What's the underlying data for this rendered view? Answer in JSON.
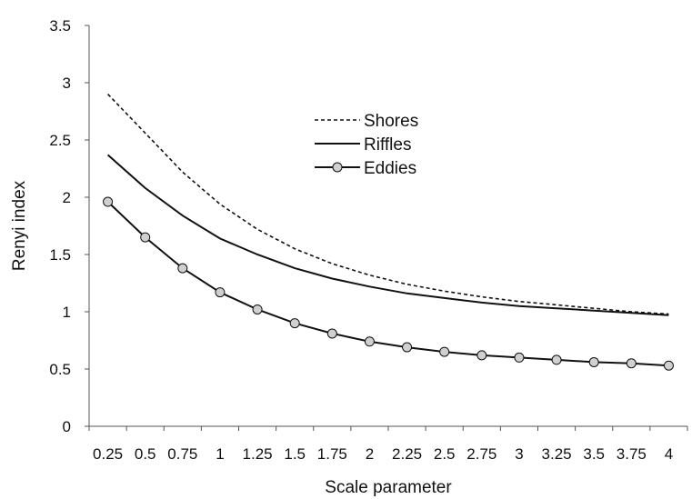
{
  "chart_data": {
    "type": "line",
    "title": "",
    "xlabel": "Scale parameter",
    "ylabel": "Renyi index",
    "x": [
      0.25,
      0.5,
      0.75,
      1,
      1.25,
      1.5,
      1.75,
      2,
      2.25,
      2.5,
      2.75,
      3,
      3.25,
      3.5,
      3.75,
      4
    ],
    "x_tick_labels": [
      "0.25",
      "0.5",
      "0.75",
      "1",
      "1.25",
      "1.5",
      "1.75",
      "2",
      "2.25",
      "2.5",
      "2.75",
      "3",
      "3.25",
      "3.5",
      "3.75",
      "4"
    ],
    "ylim": [
      0,
      3.5
    ],
    "y_ticks": [
      0,
      0.5,
      1,
      1.5,
      2,
      2.5,
      3,
      3.5
    ],
    "y_tick_labels": [
      "0",
      "0.5",
      "1",
      "1.5",
      "2",
      "2.5",
      "3",
      "3.5"
    ],
    "grid": false,
    "legend_position": "top-center",
    "series": [
      {
        "name": "Shores",
        "style": "dashed",
        "color": "#111111",
        "values": [
          2.9,
          2.56,
          2.22,
          1.94,
          1.72,
          1.55,
          1.42,
          1.32,
          1.24,
          1.18,
          1.13,
          1.09,
          1.06,
          1.03,
          1.0,
          0.98
        ]
      },
      {
        "name": "Riffles",
        "style": "solid",
        "color": "#111111",
        "values": [
          2.37,
          2.08,
          1.84,
          1.64,
          1.5,
          1.38,
          1.29,
          1.22,
          1.16,
          1.12,
          1.08,
          1.05,
          1.03,
          1.01,
          0.99,
          0.97
        ]
      },
      {
        "name": "Eddies",
        "style": "solid-circle-markers",
        "color": "#111111",
        "marker_fill": "#d0d0d0",
        "values": [
          1.96,
          1.65,
          1.38,
          1.17,
          1.02,
          0.9,
          0.81,
          0.74,
          0.69,
          0.65,
          0.62,
          0.6,
          0.58,
          0.56,
          0.55,
          0.53
        ]
      }
    ]
  }
}
